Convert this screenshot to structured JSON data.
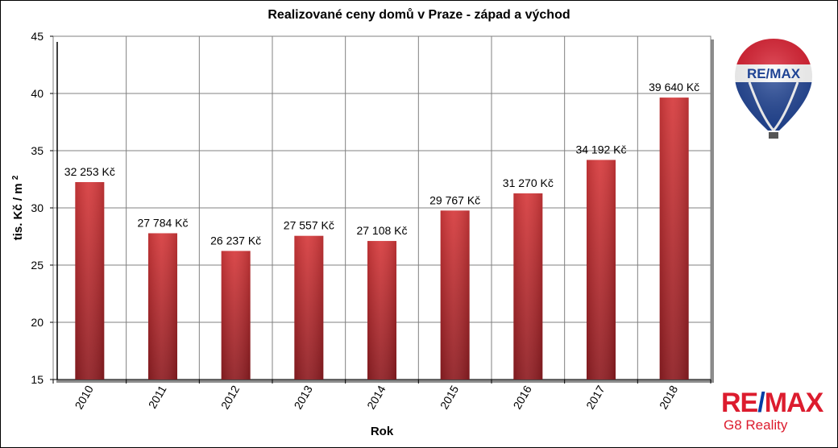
{
  "chart_data": {
    "type": "bar",
    "title": "Realizované ceny domů v Praze - západ a východ",
    "xlabel": "Rok",
    "ylabel": "tis. Kč / m²",
    "ylim": [
      15,
      45
    ],
    "yticks": [
      15,
      20,
      25,
      30,
      35,
      40,
      45
    ],
    "grid": true,
    "categories": [
      "2010",
      "2011",
      "2012",
      "2013",
      "2014",
      "2015",
      "2016",
      "2017",
      "2018"
    ],
    "values": [
      32.253,
      27.784,
      26.237,
      27.557,
      27.108,
      29.767,
      31.27,
      34.192,
      39.64
    ],
    "data_labels": [
      "32 253 Kč",
      "27 784 Kč",
      "26 237 Kč",
      "27 557 Kč",
      "27 108 Kč",
      "29 767 Kč",
      "31 270 Kč",
      "34 192 Kč",
      "39 640 Kč"
    ],
    "bar_color": "#c0282d"
  },
  "branding": {
    "balloon_logo_text": "RE/MAX",
    "brand_name": "RE/MAX",
    "brand_name_parts": [
      "RE",
      "/",
      "MAX"
    ],
    "office_name": "G8 Reality",
    "brand_red": "#dc1c2e",
    "brand_blue": "#003da5"
  }
}
